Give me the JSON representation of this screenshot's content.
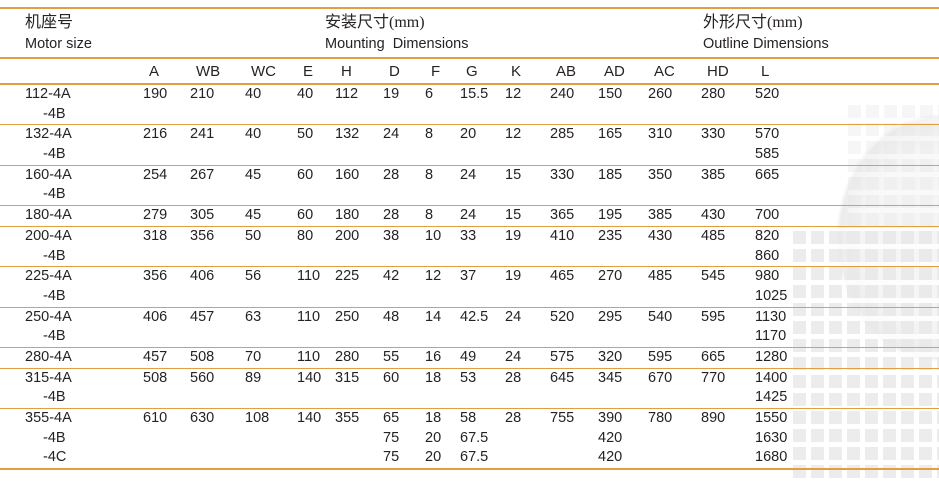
{
  "page": {
    "colors": {
      "rule_orange": "#E49D3F",
      "text": "#262223"
    },
    "header": {
      "motor_cn": "机座号",
      "motor_en": "Motor size",
      "mounting_cn": "安装尺寸(mm)",
      "mounting_en": "Mounting  Dimensions",
      "outline_cn": "外形尺寸(mm)",
      "outline_en": "Outline Dimensions"
    },
    "columns": [
      "A",
      "WB",
      "WC",
      "E",
      "H",
      "D",
      "F",
      "G",
      "K",
      "AB",
      "AD",
      "AC",
      "HD",
      "L"
    ],
    "rows": [
      {
        "label_lines": [
          "112-4A",
          "-4B"
        ],
        "cells": [
          [
            "190"
          ],
          [
            "210"
          ],
          [
            "40"
          ],
          [
            "40"
          ],
          [
            "112"
          ],
          [
            "19"
          ],
          [
            "6"
          ],
          [
            "15.5"
          ],
          [
            "12"
          ],
          [
            "240"
          ],
          [
            "150"
          ],
          [
            "260"
          ],
          [
            "280"
          ],
          [
            "520"
          ]
        ]
      },
      {
        "label_lines": [
          "132-4A",
          "-4B"
        ],
        "cells": [
          [
            "216"
          ],
          [
            "241"
          ],
          [
            "40"
          ],
          [
            "50"
          ],
          [
            "132"
          ],
          [
            "24"
          ],
          [
            "8"
          ],
          [
            "20"
          ],
          [
            "12"
          ],
          [
            "285"
          ],
          [
            "165"
          ],
          [
            "310"
          ],
          [
            "330"
          ],
          [
            "570",
            "585"
          ]
        ]
      },
      {
        "label_lines": [
          "160-4A",
          "-4B"
        ],
        "cells": [
          [
            "254"
          ],
          [
            "267"
          ],
          [
            "45"
          ],
          [
            "60"
          ],
          [
            "160"
          ],
          [
            "28"
          ],
          [
            "8"
          ],
          [
            "24"
          ],
          [
            "15"
          ],
          [
            "330"
          ],
          [
            "185"
          ],
          [
            "350"
          ],
          [
            "385"
          ],
          [
            "665"
          ]
        ]
      },
      {
        "label_lines": [
          "180-4A"
        ],
        "cells": [
          [
            "279"
          ],
          [
            "305"
          ],
          [
            "45"
          ],
          [
            "60"
          ],
          [
            "180"
          ],
          [
            "28"
          ],
          [
            "8"
          ],
          [
            "24"
          ],
          [
            "15"
          ],
          [
            "365"
          ],
          [
            "195"
          ],
          [
            "385"
          ],
          [
            "430"
          ],
          [
            "700"
          ]
        ]
      },
      {
        "label_lines": [
          "200-4A",
          "-4B"
        ],
        "cells": [
          [
            "318"
          ],
          [
            "356"
          ],
          [
            "50"
          ],
          [
            "80"
          ],
          [
            "200"
          ],
          [
            "38"
          ],
          [
            "10"
          ],
          [
            "33"
          ],
          [
            "19"
          ],
          [
            "410"
          ],
          [
            "235"
          ],
          [
            "430"
          ],
          [
            "485"
          ],
          [
            "820",
            "860"
          ]
        ]
      },
      {
        "label_lines": [
          "225-4A",
          "-4B"
        ],
        "cells": [
          [
            "356"
          ],
          [
            "406"
          ],
          [
            "56"
          ],
          [
            "110"
          ],
          [
            "225"
          ],
          [
            "42"
          ],
          [
            "12"
          ],
          [
            "37"
          ],
          [
            "19"
          ],
          [
            "465"
          ],
          [
            "270"
          ],
          [
            "485"
          ],
          [
            "545"
          ],
          [
            "980",
            "1025"
          ]
        ]
      },
      {
        "label_lines": [
          "250-4A",
          "-4B"
        ],
        "cells": [
          [
            "406"
          ],
          [
            "457"
          ],
          [
            "63"
          ],
          [
            "110"
          ],
          [
            "250"
          ],
          [
            "48"
          ],
          [
            "14"
          ],
          [
            "42.5"
          ],
          [
            "24"
          ],
          [
            "520"
          ],
          [
            "295"
          ],
          [
            "540"
          ],
          [
            "595"
          ],
          [
            "1130",
            "1170"
          ]
        ]
      },
      {
        "label_lines": [
          "280-4A"
        ],
        "cells": [
          [
            "457"
          ],
          [
            "508"
          ],
          [
            "70"
          ],
          [
            "110"
          ],
          [
            "280"
          ],
          [
            "55"
          ],
          [
            "16"
          ],
          [
            "49"
          ],
          [
            "24"
          ],
          [
            "575"
          ],
          [
            "320"
          ],
          [
            "595"
          ],
          [
            "665"
          ],
          [
            "1280"
          ]
        ]
      },
      {
        "label_lines": [
          "315-4A",
          "-4B"
        ],
        "cells": [
          [
            "508"
          ],
          [
            "560"
          ],
          [
            "89"
          ],
          [
            "140"
          ],
          [
            "315"
          ],
          [
            "60"
          ],
          [
            "18"
          ],
          [
            "53"
          ],
          [
            "28"
          ],
          [
            "645"
          ],
          [
            "345"
          ],
          [
            "670"
          ],
          [
            "770"
          ],
          [
            "1400",
            "1425"
          ]
        ]
      },
      {
        "label_lines": [
          "355-4A",
          "-4B",
          "-4C"
        ],
        "cells": [
          [
            "610"
          ],
          [
            "630"
          ],
          [
            "108"
          ],
          [
            "140"
          ],
          [
            "355"
          ],
          [
            "65",
            "75",
            "75"
          ],
          [
            "18",
            "20",
            "20"
          ],
          [
            "58",
            "67.5",
            "67.5"
          ],
          [
            "28"
          ],
          [
            "755"
          ],
          [
            "390",
            "420",
            "420"
          ],
          [
            "780"
          ],
          [
            "890"
          ],
          [
            "1550",
            "1630",
            "1680"
          ]
        ]
      }
    ]
  }
}
